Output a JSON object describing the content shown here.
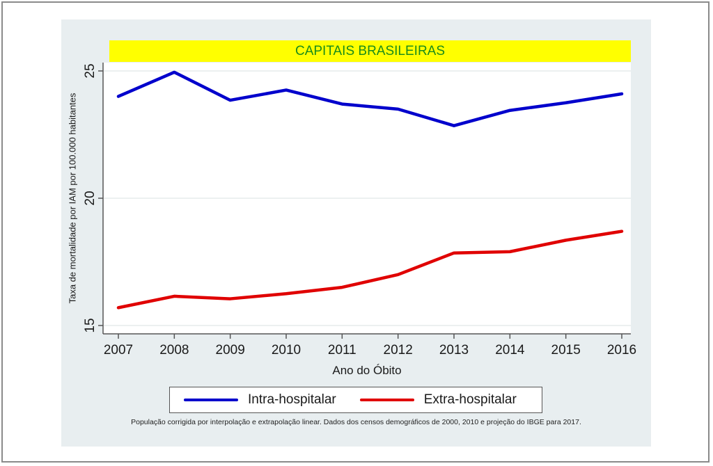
{
  "chart_data": {
    "type": "line",
    "title": "CAPITAIS BRASILEIRAS",
    "xlabel": "Ano do Óbito",
    "ylabel": "Taxa de mortalidade por IAM por 100.000 habitantes",
    "x": [
      2007,
      2008,
      2009,
      2010,
      2011,
      2012,
      2013,
      2014,
      2015,
      2016
    ],
    "x_tick_labels": [
      "2007",
      "2008",
      "2009",
      "2010",
      "2011",
      "2012",
      "2013",
      "2014",
      "2015",
      "2016"
    ],
    "y_ticks": [
      15,
      20,
      25
    ],
    "y_tick_labels": [
      "15",
      "20",
      "25"
    ],
    "ylim": [
      15,
      25
    ],
    "grid": true,
    "legend_position": "bottom",
    "series": [
      {
        "name": "Intra-hospitalar",
        "color": "#0000cc",
        "values": [
          24.0,
          24.95,
          23.85,
          24.25,
          23.7,
          23.5,
          22.85,
          23.45,
          23.75,
          24.1
        ]
      },
      {
        "name": "Extra-hospitalar",
        "color": "#e00000",
        "values": [
          15.7,
          16.15,
          16.05,
          16.25,
          16.5,
          17.0,
          17.85,
          17.9,
          18.35,
          18.7
        ]
      }
    ],
    "note": "População corrigida por interpolação e extrapolação linear. Dados dos censos demográficos de 2000, 2010 e projeção do IBGE para 2017."
  },
  "colors": {
    "title_band": "#ffff00",
    "title_text": "#1a8c1a",
    "panel_background": "#e8eef0"
  }
}
